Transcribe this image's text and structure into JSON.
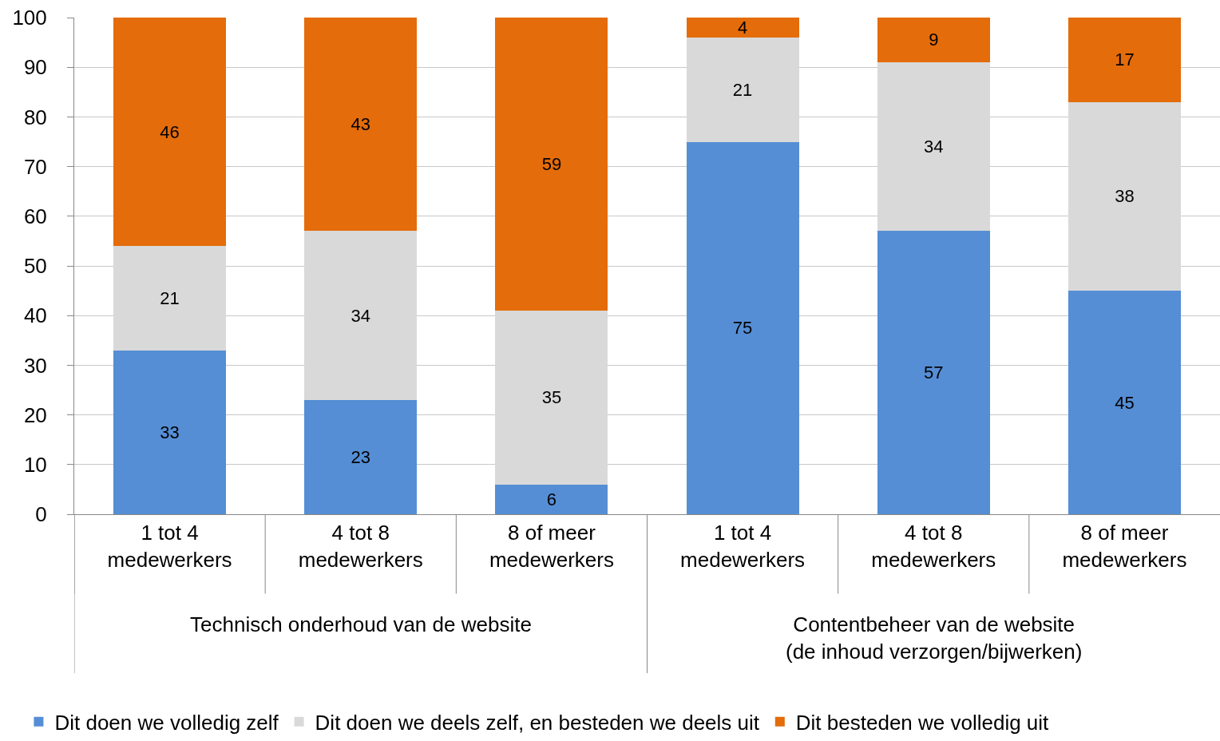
{
  "chart_data": {
    "type": "bar",
    "stacked": true,
    "data_labels": true,
    "grid": "y",
    "legend": "bottom",
    "categories": [
      "1 tot 4 medewerkers",
      "4 tot 8 medewerkers",
      "8 of meer medewerkers",
      "1 tot 4 medewerkers",
      "4 tot 8 medewerkers",
      "8 of meer medewerkers"
    ],
    "series": [
      {
        "name": "Dit doen we volledig zelf",
        "color": "#558ed5",
        "values": [
          33,
          23,
          6,
          75,
          57,
          45
        ]
      },
      {
        "name": "Dit doen we deels zelf, en besteden we deels uit",
        "color": "#d9d9d9",
        "values": [
          21,
          34,
          35,
          21,
          34,
          38
        ]
      },
      {
        "name": "Dit besteden we volledig uit",
        "color": "#e46c0a",
        "values": [
          46,
          43,
          59,
          4,
          9,
          17
        ]
      }
    ],
    "ylim": [
      0,
      100
    ],
    "yticks": [
      0,
      10,
      20,
      30,
      40,
      50,
      60,
      70,
      80,
      90,
      100
    ],
    "annotations": [
      "Technisch onderhoud van de website",
      "Contentbeheer van de website\n(de inhoud verzorgen/bijwerken)"
    ]
  }
}
